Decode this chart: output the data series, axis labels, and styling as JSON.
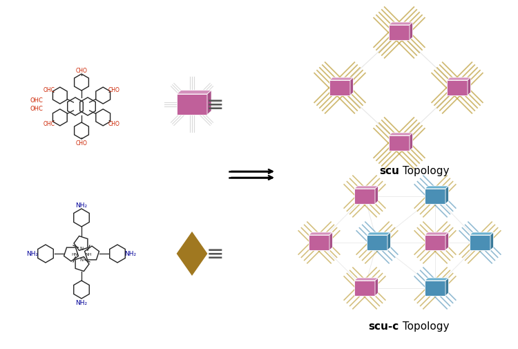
{
  "bg_color": "#ffffff",
  "purple_face": "#c0609a",
  "purple_top": "#d490bc",
  "purple_side": "#a85088",
  "blue_face": "#4a8fb5",
  "blue_top": "#6ab0d0",
  "blue_side": "#3a7a9a",
  "gold_color": "#b8962a",
  "diamond_fill": "#a07820",
  "mol1_red": "#cc2200",
  "mol2_blue": "#000099",
  "struct_black": "#222222",
  "gray_line": "#cccccc",
  "ext_line": "#d0d0d0",
  "label_fontsize": 11,
  "scu_bold": "scu",
  "scu_rest": " Topology",
  "scu_c_bold": "scu-c",
  "scu_c_rest": " Topology"
}
